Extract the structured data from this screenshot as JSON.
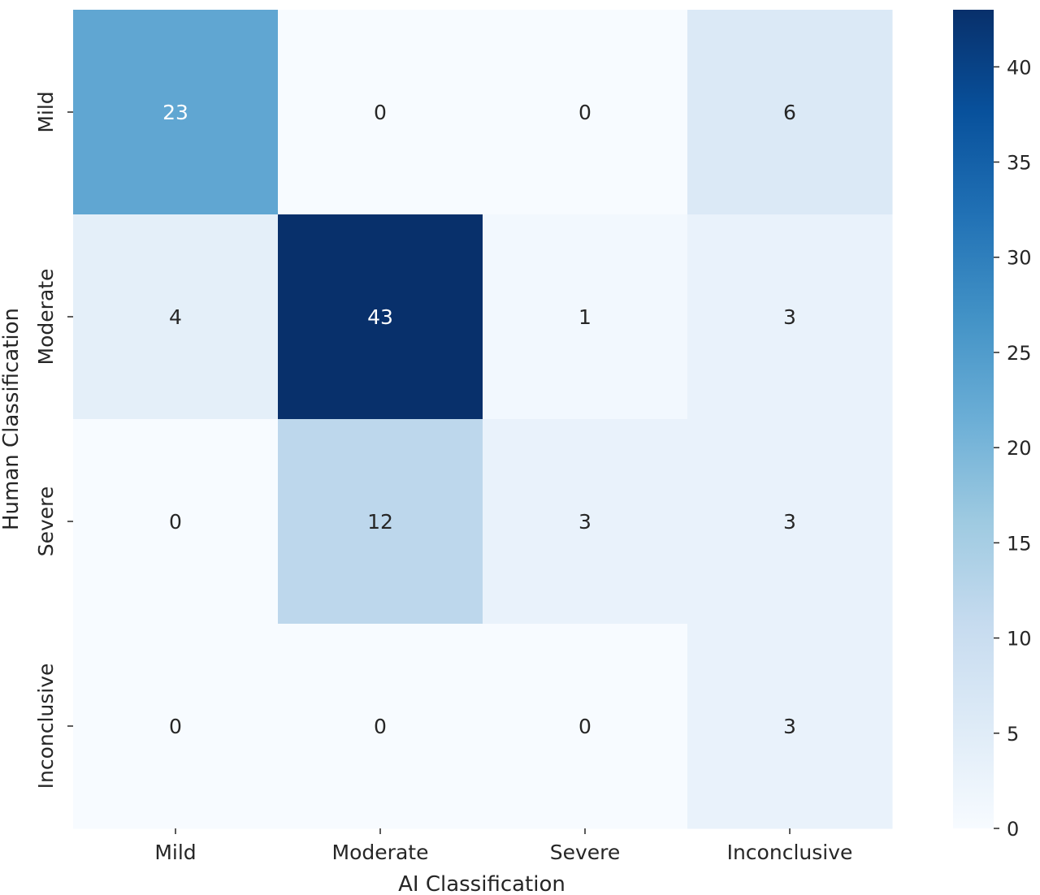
{
  "chart_data": {
    "type": "heatmap",
    "xlabel": "AI Classification",
    "ylabel": "Human Classification",
    "x_categories": [
      "Mild",
      "Moderate",
      "Severe",
      "Inconclusive"
    ],
    "y_categories": [
      "Mild",
      "Moderate",
      "Severe",
      "Inconclusive"
    ],
    "values": [
      [
        23,
        0,
        0,
        6
      ],
      [
        4,
        43,
        1,
        3
      ],
      [
        0,
        12,
        3,
        3
      ],
      [
        0,
        0,
        0,
        3
      ]
    ],
    "colormap": "Blues",
    "color_range": [
      0,
      43
    ],
    "colorbar_ticks": [
      0,
      5,
      10,
      15,
      20,
      25,
      30,
      35,
      40
    ],
    "colors": {
      "low": "#f7fbff",
      "high": "#08306b",
      "dark_text": "#262626",
      "light_text": "#ffffff"
    }
  }
}
